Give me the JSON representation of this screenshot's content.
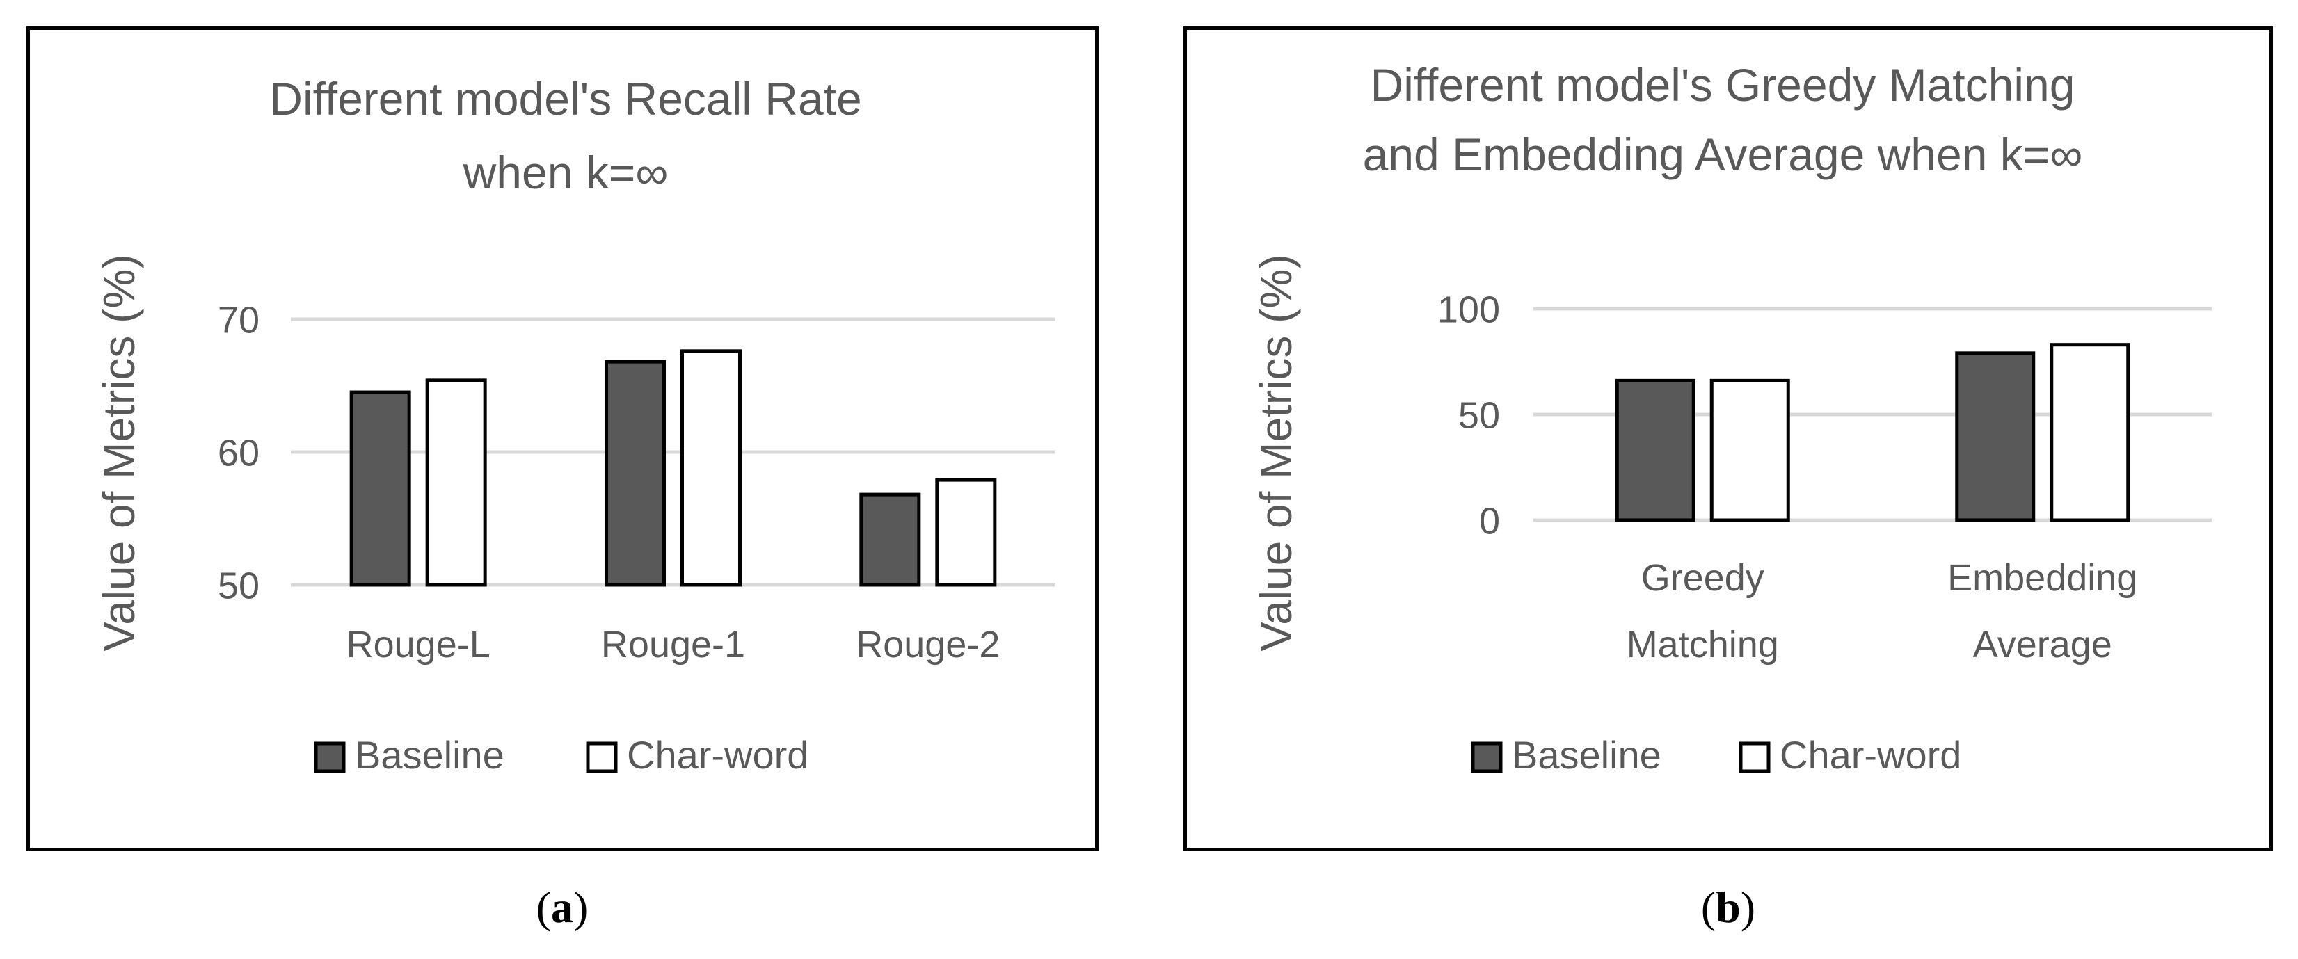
{
  "chart_data": [
    {
      "type": "bar",
      "title": [
        "Different model's Recall Rate",
        "when k=∞"
      ],
      "ylabel": "Value of Metrics (%)",
      "xlabel": "",
      "categories": [
        [
          "Rouge-L"
        ],
        [
          "Rouge-1"
        ],
        [
          "Rouge-2"
        ]
      ],
      "series": [
        {
          "name": "Baseline",
          "values": [
            64.5,
            66.8,
            56.8
          ],
          "color": "#595959"
        },
        {
          "name": "Char-word",
          "values": [
            65.4,
            67.6,
            57.9
          ],
          "color": "#ffffff"
        }
      ],
      "ylim": [
        50,
        70
      ],
      "yticks": [
        50,
        60,
        70
      ],
      "grid": true,
      "legend": "bottom"
    },
    {
      "type": "bar",
      "title": [
        "Different model's Greedy Matching",
        "and Embedding Average when k=∞"
      ],
      "ylabel": "Value of Metrics (%)",
      "xlabel": "",
      "categories": [
        [
          "Greedy",
          "Matching"
        ],
        [
          "Embedding",
          "Average"
        ]
      ],
      "series": [
        {
          "name": "Baseline",
          "values": [
            66,
            79
          ],
          "color": "#595959"
        },
        {
          "name": "Char-word",
          "values": [
            66,
            83
          ],
          "color": "#ffffff"
        }
      ],
      "ylim": [
        0,
        100
      ],
      "yticks": [
        0,
        50,
        100
      ],
      "grid": true,
      "legend": "bottom"
    }
  ],
  "captions": [
    "a",
    "b"
  ],
  "style": {
    "text_color": "#595959",
    "grid_color": "#d9d9d9",
    "bar_edge_color": "#000000"
  }
}
